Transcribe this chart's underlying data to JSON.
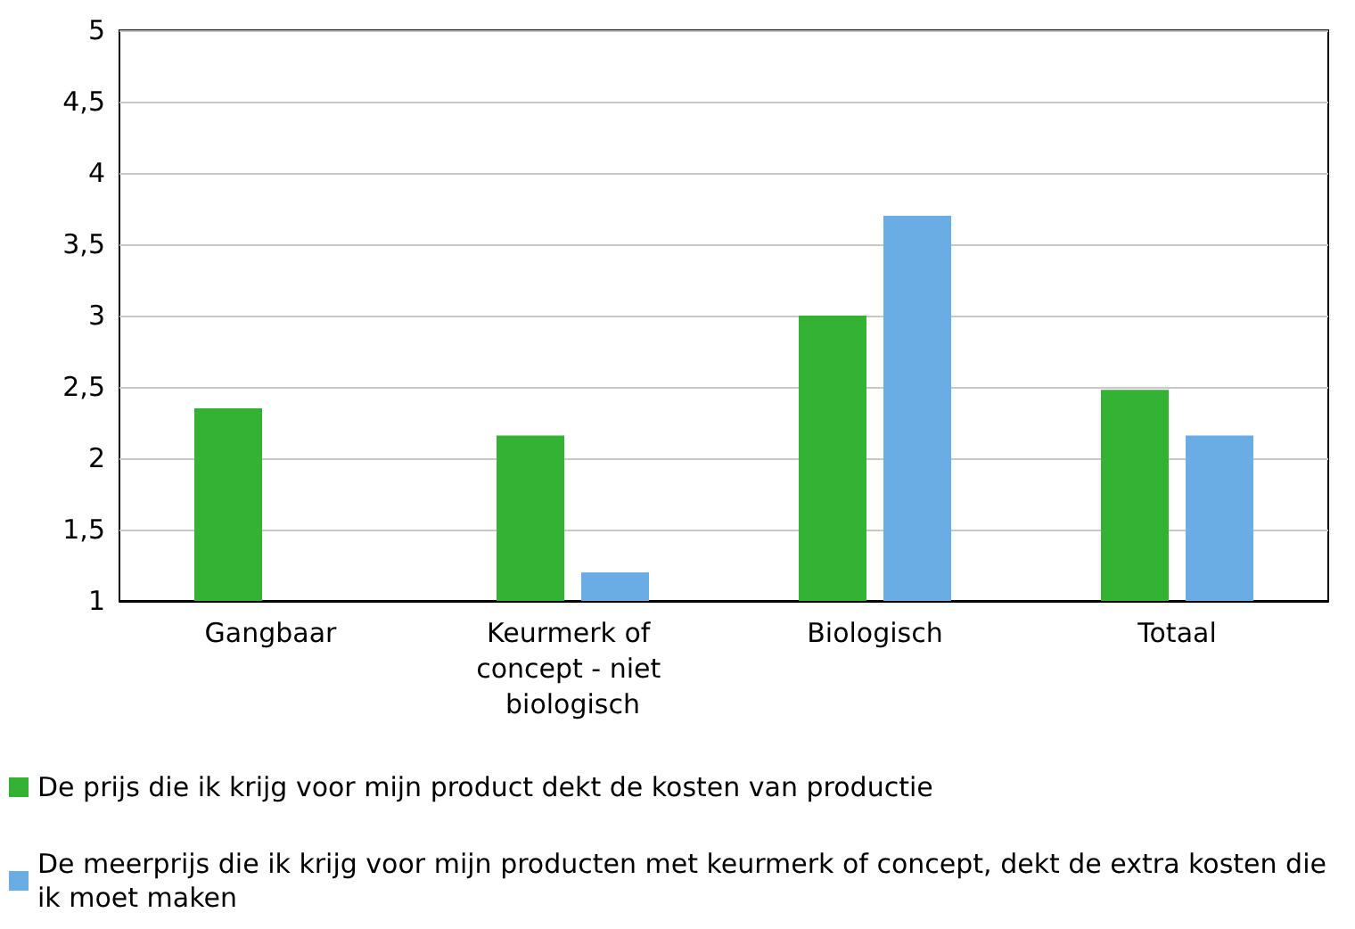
{
  "chart_data": {
    "type": "bar",
    "categories": [
      "Gangbaar",
      "Keurmerk of concept - niet biologisch",
      "Biologisch",
      "Totaal"
    ],
    "series": [
      {
        "name": "De prijs die ik krijg voor mijn product dekt de kosten van productie",
        "color": "#34b233",
        "values": [
          2.35,
          2.16,
          3.0,
          2.48
        ]
      },
      {
        "name": "De meerprijs die ik krijg voor mijn producten met keurmerk of concept, dekt de extra kosten die ik moet maken",
        "color": "#6aace4",
        "values": [
          null,
          1.2,
          3.7,
          2.16
        ]
      }
    ],
    "ylim": [
      1,
      5
    ],
    "yticks": [
      1,
      {
        "value": 1.5,
        "label": "1,5"
      },
      2,
      {
        "value": 2.5,
        "label": "2,5"
      },
      3,
      {
        "value": 3.5,
        "label": "3,5"
      },
      4,
      {
        "value": 4.5,
        "label": "4,5"
      },
      5
    ],
    "grid": "y",
    "legend": "bottom"
  }
}
